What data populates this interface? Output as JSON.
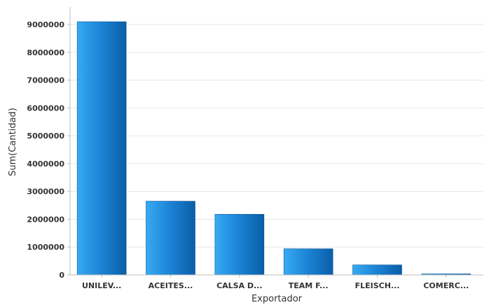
{
  "chart_data": {
    "type": "bar",
    "title": "",
    "xlabel": "Exportador",
    "ylabel": "Sum(Cantidad)",
    "categories": [
      "UNILEV...",
      "ACEITES...",
      "CALSA D...",
      "TEAM F...",
      "FLEISCH...",
      "COMERC..."
    ],
    "values": [
      9100000,
      2650000,
      2180000,
      940000,
      360000,
      15000
    ],
    "ylim": [
      0,
      9000000
    ],
    "yticks": [
      0,
      1000000,
      2000000,
      3000000,
      4000000,
      5000000,
      6000000,
      7000000,
      8000000,
      9000000
    ],
    "grid": true,
    "legend": "none",
    "colors": {
      "bar_light": "#38aaf2",
      "bar_dark": "#0a5ea8",
      "bar_mid": "#1d86d8"
    }
  }
}
